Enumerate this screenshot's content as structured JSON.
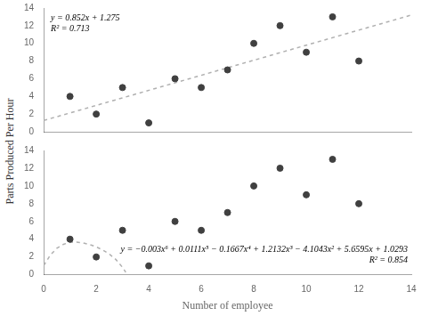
{
  "chart_data": [
    {
      "type": "scatter",
      "ylabel": "Parts Produced Per Hour",
      "annotations": [
        "y = 0.852x + 1.275",
        "R² = 0.713"
      ],
      "xlim": [
        0,
        14
      ],
      "ylim": [
        0,
        14
      ],
      "xticks": [
        0,
        2,
        4,
        6,
        8,
        10,
        12,
        14
      ],
      "yticks": [
        0,
        2,
        4,
        6,
        8,
        10,
        12,
        14
      ],
      "grid": false,
      "tick_labels": "y",
      "series": [
        {
          "type": "scatter",
          "color": "#404040",
          "x": [
            1,
            2,
            3,
            4,
            5,
            6,
            7,
            8,
            9,
            10,
            11,
            12
          ],
          "values": [
            4,
            2,
            5,
            1,
            6,
            5,
            7,
            10,
            12,
            9,
            13,
            8
          ]
        },
        {
          "type": "line",
          "color": "#b0b0b0",
          "line_style": "dashed",
          "x": [
            0,
            14
          ],
          "values": [
            1.275,
            13.203
          ]
        }
      ]
    },
    {
      "type": "scatter",
      "xlabel": "Number of employee",
      "annotations": [
        "y = −0.003x⁶ + 0.0111x⁵ − 0.1667x⁴ + 1.2132x³ − 4.1043x² + 5.6595x + 1.0293",
        "R² = 0.854"
      ],
      "xlim": [
        0,
        14
      ],
      "ylim": [
        0,
        14
      ],
      "xticks": [
        0,
        2,
        4,
        6,
        8,
        10,
        12,
        14
      ],
      "yticks": [
        0,
        2,
        4,
        6,
        8,
        10,
        12,
        14
      ],
      "grid": false,
      "series": [
        {
          "type": "scatter",
          "color": "#404040",
          "x": [
            1,
            2,
            3,
            4,
            5,
            6,
            7,
            8,
            9,
            10,
            11,
            12
          ],
          "values": [
            4,
            2,
            5,
            1,
            6,
            5,
            7,
            10,
            12,
            9,
            13,
            8
          ]
        },
        {
          "type": "line",
          "color": "#b0b0b0",
          "line_style": "dashed",
          "x": [
            0,
            0.25,
            0.5,
            0.75,
            1,
            1.25,
            1.5,
            1.75,
            2,
            2.25,
            2.5,
            2.75,
            3,
            3.125
          ],
          "values": [
            1.0293,
            2.206,
            2.9745,
            3.4264,
            3.6391,
            3.6757,
            3.5846,
            3.3986,
            3.1327,
            2.7828,
            2.3223,
            1.6994,
            0.8331,
            0.2744
          ]
        }
      ]
    }
  ]
}
